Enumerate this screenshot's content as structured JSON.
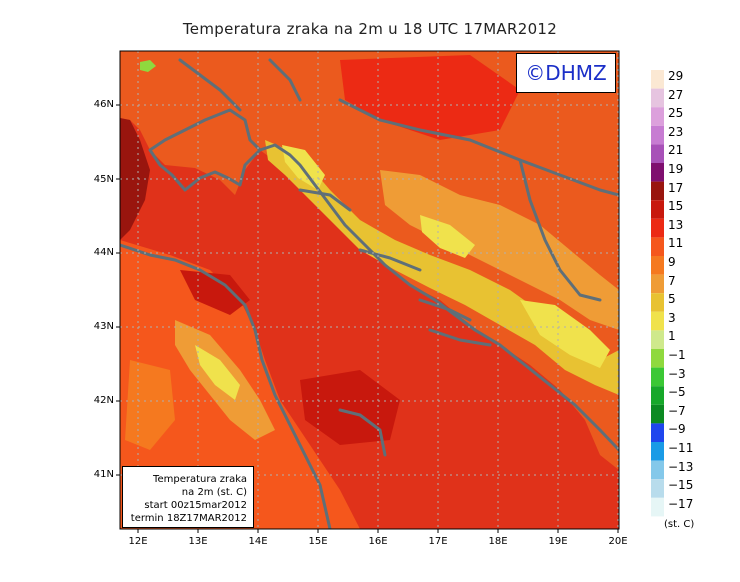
{
  "title": "Temperatura zraka na 2m u 18 UTC 17MAR2012",
  "badge": "©DHMZ",
  "info": {
    "line1": "Temperatura zraka",
    "line2": "na 2m (st. C)",
    "line3": "start 00z15mar2012",
    "line4": "termin 18Z17MAR2012"
  },
  "lat_ticks": [
    "46N",
    "45N",
    "44N",
    "43N",
    "42N",
    "41N"
  ],
  "lon_ticks": [
    "12E",
    "13E",
    "14E",
    "15E",
    "16E",
    "17E",
    "18E",
    "19E",
    "20E"
  ],
  "legend": {
    "unit": "(st. C)",
    "labels": [
      "29",
      "27",
      "25",
      "23",
      "21",
      "19",
      "17",
      "15",
      "13",
      "11",
      "9",
      "7",
      "5",
      "3",
      "1",
      "−1",
      "−3",
      "−5",
      "−7",
      "−9",
      "−11",
      "−13",
      "−15",
      "−17"
    ],
    "colors": [
      "#fbe8d3",
      "#e6c4e0",
      "#dca0dc",
      "#c77cd2",
      "#a851b8",
      "#7f0f6f",
      "#99150e",
      "#c8180d",
      "#ec2a14",
      "#f5571c",
      "#f5791f",
      "#ef9c36",
      "#e8c232",
      "#f0e24c",
      "#cfe98c",
      "#8fd93e",
      "#3bc835",
      "#17a82a",
      "#0c8a22",
      "#1f46ee",
      "#1a9be6",
      "#84c8ea",
      "#b8dcec",
      "#e6f6f6"
    ]
  },
  "colors": {
    "sea": "#e0321a",
    "land_base": "#eb5a1e",
    "coastline": "#5f6f78",
    "grid": "#b0b0b0"
  }
}
